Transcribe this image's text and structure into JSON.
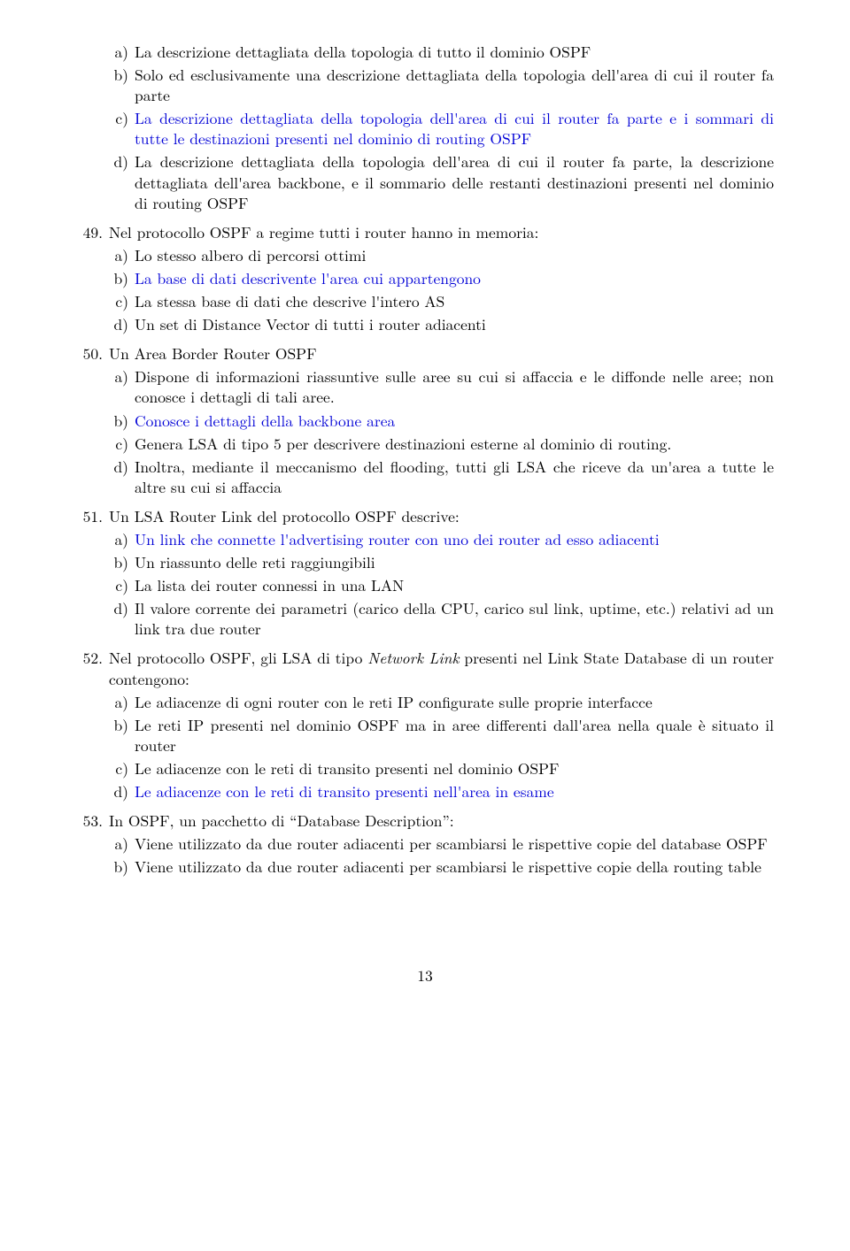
{
  "text_color": "#000000",
  "highlight_color": "#0000d6",
  "background_color": "#ffffff",
  "font_family": "Latin Modern Roman, CMU Serif, Computer Modern, Georgia, serif",
  "font_size_pt": 12,
  "page_number": "13",
  "q48_continued": {
    "options": [
      {
        "label": "a)",
        "text": "La descrizione dettagliata della topologia di tutto il dominio OSPF",
        "highlight": false
      },
      {
        "label": "b)",
        "text": "Solo ed esclusivamente una descrizione dettagliata della topologia dell'area di cui il router fa parte",
        "highlight": false
      },
      {
        "label": "c)",
        "text": "La descrizione dettagliata della topologia dell'area di cui il router fa parte e i sommari di tutte le destinazioni presenti nel dominio di routing OSPF",
        "highlight": true
      },
      {
        "label": "d)",
        "text": "La descrizione dettagliata della topologia dell'area di cui il router fa parte, la descrizione dettagliata dell'area backbone, e il sommario delle restanti destinazioni presenti nel dominio di routing OSPF",
        "highlight": false
      }
    ]
  },
  "questions": [
    {
      "number": "49.",
      "text": "Nel protocollo OSPF a regime tutti i router hanno in memoria:",
      "options": [
        {
          "label": "a)",
          "text": "Lo stesso albero di percorsi ottimi",
          "highlight": false
        },
        {
          "label": "b)",
          "text": "La base di dati descrivente l'area cui appartengono",
          "highlight": true
        },
        {
          "label": "c)",
          "text": "La stessa base di dati che descrive l'intero AS",
          "highlight": false
        },
        {
          "label": "d)",
          "text": "Un set di Distance Vector di tutti i router adiacenti",
          "highlight": false
        }
      ]
    },
    {
      "number": "50.",
      "text": "Un Area Border Router OSPF",
      "options": [
        {
          "label": "a)",
          "text": "Dispone di informazioni riassuntive sulle aree su cui si affaccia e le diffonde nelle aree; non conosce i dettagli di tali aree.",
          "highlight": false
        },
        {
          "label": "b)",
          "text": "Conosce i dettagli della backbone area",
          "highlight": true
        },
        {
          "label": "c)",
          "text": "Genera LSA di tipo 5 per descrivere destinazioni esterne al dominio di routing.",
          "highlight": false
        },
        {
          "label": "d)",
          "text": "Inoltra, mediante il meccanismo del flooding, tutti gli LSA che riceve da un'area a tutte le altre su cui si affaccia",
          "highlight": false
        }
      ]
    },
    {
      "number": "51.",
      "text": "Un LSA Router Link del protocollo OSPF descrive:",
      "options": [
        {
          "label": "a)",
          "text": "Un link che connette l'advertising router con uno dei router ad esso adiacenti",
          "highlight": true
        },
        {
          "label": "b)",
          "text": "Un riassunto delle reti raggiungibili",
          "highlight": false
        },
        {
          "label": "c)",
          "text": "La lista dei router connessi in una LAN",
          "highlight": false
        },
        {
          "label": "d)",
          "text": "Il valore corrente dei parametri (carico della CPU, carico sul link, uptime, etc.) relativi ad un link tra due router",
          "highlight": false
        }
      ]
    },
    {
      "number": "52.",
      "text_parts": [
        {
          "t": "Nel protocollo OSPF, gli LSA di tipo ",
          "italic": false
        },
        {
          "t": "Network Link",
          "italic": true
        },
        {
          "t": " presenti nel Link State Database di un router contengono:",
          "italic": false
        }
      ],
      "options": [
        {
          "label": "a)",
          "text": "Le adiacenze di ogni router con le reti IP configurate sulle proprie interfacce",
          "highlight": false
        },
        {
          "label": "b)",
          "text": "Le reti IP presenti nel dominio OSPF ma in aree differenti dall'area nella quale è situato il router",
          "highlight": false
        },
        {
          "label": "c)",
          "text": "Le adiacenze con le reti di transito presenti nel dominio OSPF",
          "highlight": false
        },
        {
          "label": "d)",
          "text": "Le adiacenze con le reti di transito presenti nell'area in esame",
          "highlight": true
        }
      ]
    },
    {
      "number": "53.",
      "text": "In OSPF, un pacchetto di “Database Description”:",
      "options": [
        {
          "label": "a)",
          "text": "Viene utilizzato da due router adiacenti per scambiarsi le rispettive copie del database OSPF",
          "highlight": false
        },
        {
          "label": "b)",
          "text": "Viene utilizzato da due router adiacenti per scambiarsi le rispettive copie della routing table",
          "highlight": false
        }
      ]
    }
  ]
}
